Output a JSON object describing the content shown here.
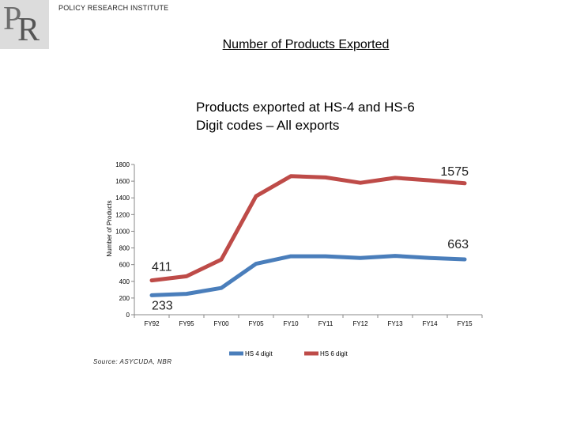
{
  "header": {
    "organization": "POLICY RESEARCH INSTITUTE",
    "title": "Number of Products Exported"
  },
  "logo": {
    "letter1": "P",
    "letter2": "R"
  },
  "source": "Source: ASYCUDA, NBR",
  "colors": {
    "hs4": "#4a7ebb",
    "hs6": "#be4b48"
  },
  "chart_data": {
    "type": "line",
    "title": "Products exported at HS-4 and HS-6 Digit codes – All exports",
    "xlabel": "",
    "ylabel": "Number of Products",
    "ylim": [
      0,
      1800
    ],
    "yticks": [
      0,
      200,
      400,
      600,
      800,
      1000,
      1200,
      1400,
      1600,
      1800
    ],
    "categories": [
      "FY92",
      "FY95",
      "FY00",
      "FY05",
      "FY10",
      "FY11",
      "FY12",
      "FY13",
      "FY14",
      "FY15"
    ],
    "series": [
      {
        "name": "HS 4 digit",
        "values": [
          233,
          250,
          320,
          610,
          700,
          700,
          680,
          705,
          680,
          663
        ]
      },
      {
        "name": "HS 6 digit",
        "values": [
          411,
          460,
          660,
          1420,
          1660,
          1645,
          1580,
          1640,
          1610,
          1575
        ]
      }
    ],
    "annotations": [
      {
        "series": 0,
        "index": 0,
        "text": "233"
      },
      {
        "series": 1,
        "index": 0,
        "text": "411"
      },
      {
        "series": 0,
        "index": 9,
        "text": "663"
      },
      {
        "series": 1,
        "index": 9,
        "text": "1575"
      }
    ],
    "legend": "bottom"
  }
}
